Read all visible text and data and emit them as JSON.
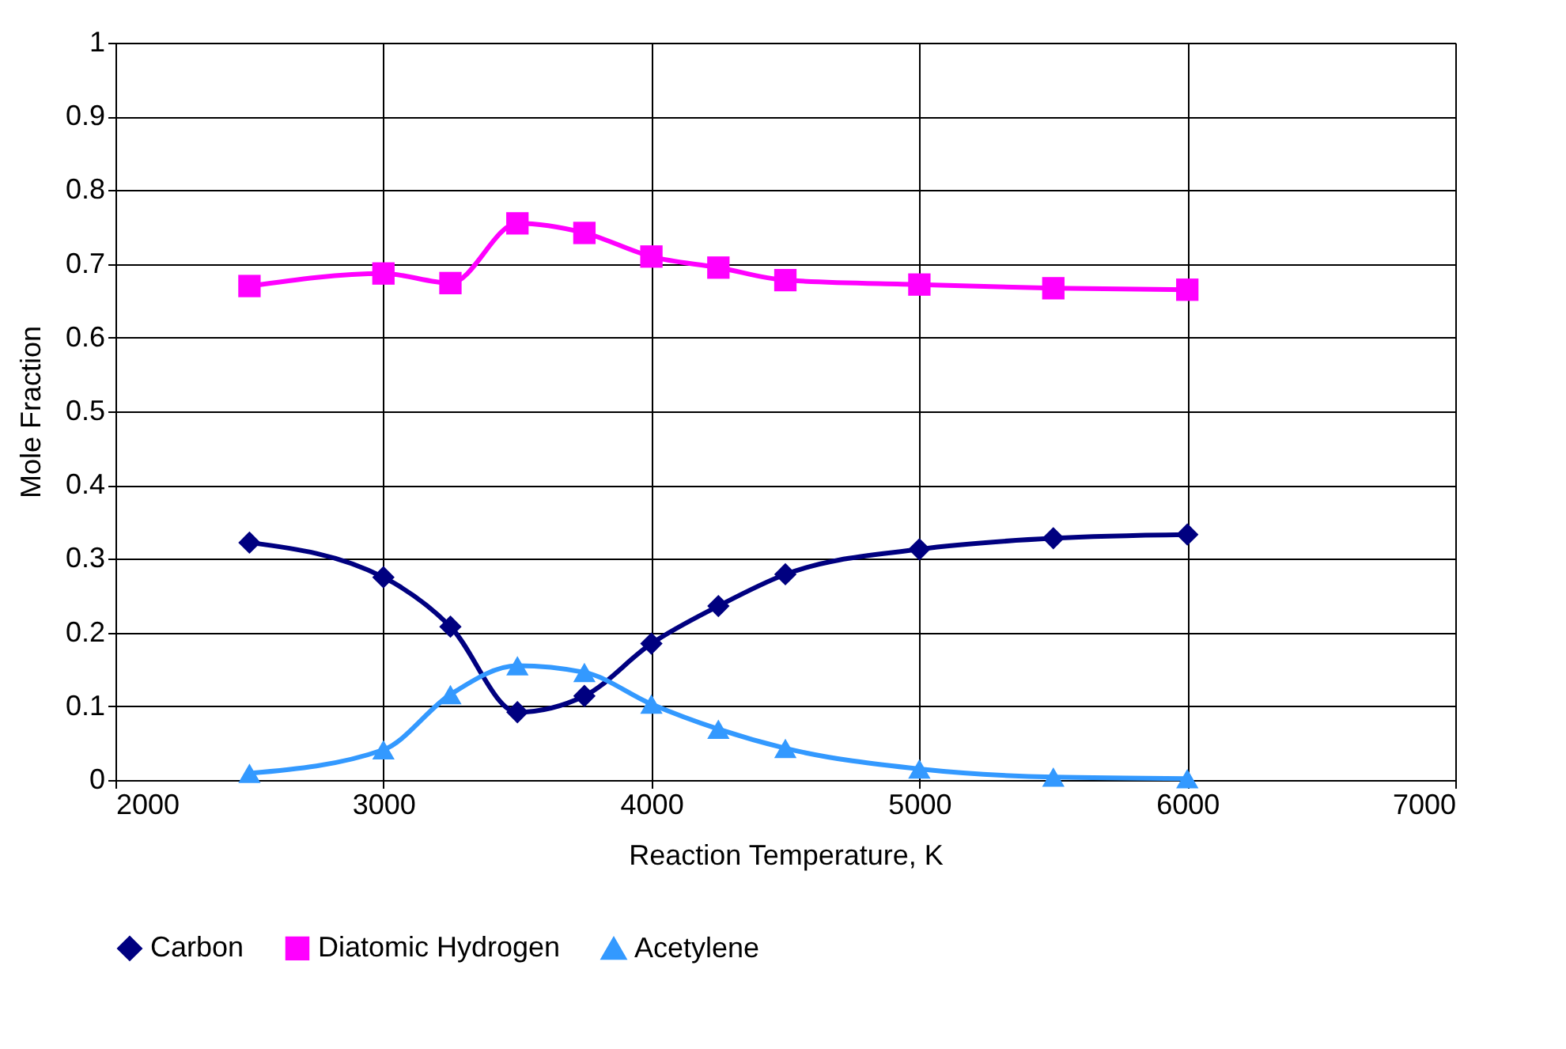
{
  "chart_data": {
    "type": "line",
    "xlabel": "Reaction Temperature, K",
    "ylabel": "Mole Fraction",
    "x": [
      2500,
      3000,
      3250,
      3500,
      3750,
      4000,
      4250,
      4500,
      5000,
      5500,
      6000
    ],
    "series": [
      {
        "name": "Carbon",
        "color": "#000080",
        "marker": "diamond",
        "values": [
          0.322,
          0.275,
          0.208,
          0.092,
          0.114,
          0.185,
          0.236,
          0.279,
          0.313,
          0.328,
          0.333
        ]
      },
      {
        "name": "Diatomic Hydrogen",
        "color": "#ff00ff",
        "marker": "square",
        "values": [
          0.67,
          0.687,
          0.674,
          0.755,
          0.742,
          0.71,
          0.695,
          0.678,
          0.672,
          0.667,
          0.665
        ]
      },
      {
        "name": "Acetylene",
        "color": "#3399ff",
        "marker": "triangle",
        "values": [
          0.009,
          0.041,
          0.116,
          0.155,
          0.146,
          0.103,
          0.069,
          0.043,
          0.015,
          0.004,
          0.002
        ]
      }
    ],
    "xlim": [
      2000,
      7000
    ],
    "xticks": [
      2000,
      3000,
      4000,
      5000,
      6000,
      7000
    ],
    "ylim": [
      0,
      1
    ],
    "yticks": [
      0,
      0.1,
      0.2,
      0.3,
      0.4,
      0.5,
      0.6,
      0.7,
      0.8,
      0.9,
      1
    ],
    "grid": true,
    "legend": "bottom",
    "line_style": "solid"
  }
}
